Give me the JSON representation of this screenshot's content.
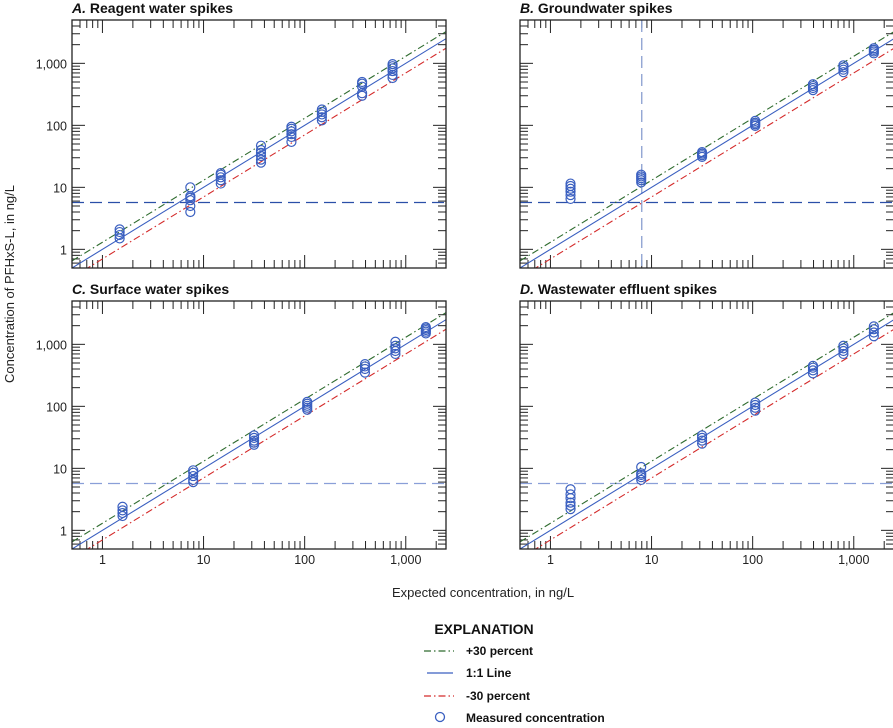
{
  "chart_data": [
    {
      "type": "scatter",
      "panel_letter": "A.",
      "title": "Reagent water spikes",
      "x_scale": "log",
      "y_scale": "log",
      "xlim": [
        0.5,
        2500
      ],
      "ylim": [
        0.5,
        5000
      ],
      "x_tick_labels_shown": false,
      "y_tick_labels_shown": true,
      "horizontal_reference": 5.7,
      "horizontal_reference_color": "#2b4fa8",
      "points": [
        {
          "x": 1.48,
          "y": [
            1.5,
            1.7,
            1.9,
            2.1
          ]
        },
        {
          "x": 7.4,
          "y": [
            4,
            5,
            6.2,
            6.8,
            7.2,
            10
          ]
        },
        {
          "x": 14.8,
          "y": [
            11.5,
            13,
            14.5,
            16,
            17
          ]
        },
        {
          "x": 37,
          "y": [
            25,
            28,
            32,
            36,
            40,
            47
          ]
        },
        {
          "x": 74,
          "y": [
            54,
            65,
            72,
            80,
            88,
            95
          ]
        },
        {
          "x": 148,
          "y": [
            120,
            135,
            150,
            165,
            180
          ]
        },
        {
          "x": 370,
          "y": [
            300,
            330,
            420,
            470,
            500
          ]
        },
        {
          "x": 740,
          "y": [
            580,
            650,
            750,
            830,
            900,
            970
          ]
        }
      ]
    },
    {
      "type": "scatter",
      "panel_letter": "B.",
      "title": "Groundwater spikes",
      "x_scale": "log",
      "y_scale": "log",
      "xlim": [
        0.5,
        2500
      ],
      "ylim": [
        0.5,
        5000
      ],
      "x_tick_labels_shown": false,
      "y_tick_labels_shown": false,
      "horizontal_reference": 5.7,
      "horizontal_reference_color": "#2b4fa8",
      "vertical_reference": 8,
      "vertical_reference_color": "#8a9fd0",
      "points": [
        {
          "x": 1.58,
          "y": [
            6.5,
            7.5,
            8.5,
            9.5,
            10.5,
            11.5
          ]
        },
        {
          "x": 7.9,
          "y": [
            12,
            13,
            14,
            15,
            16
          ]
        },
        {
          "x": 31.6,
          "y": [
            31,
            33,
            35,
            37
          ]
        },
        {
          "x": 106,
          "y": [
            98,
            104,
            110,
            118
          ]
        },
        {
          "x": 395,
          "y": [
            370,
            400,
            430,
            460
          ]
        },
        {
          "x": 790,
          "y": [
            720,
            790,
            860,
            930
          ]
        },
        {
          "x": 1580,
          "y": [
            1450,
            1550,
            1650,
            1750
          ]
        }
      ]
    },
    {
      "type": "scatter",
      "panel_letter": "C.",
      "title": "Surface water spikes",
      "x_scale": "log",
      "y_scale": "log",
      "xlim": [
        0.5,
        2500
      ],
      "ylim": [
        0.5,
        5000
      ],
      "x_tick_labels_shown": true,
      "y_tick_labels_shown": true,
      "horizontal_reference": 5.7,
      "horizontal_reference_color": "#8a9fd8",
      "points": [
        {
          "x": 1.58,
          "y": [
            1.7,
            1.9,
            2.1,
            2.4
          ]
        },
        {
          "x": 7.9,
          "y": [
            6.0,
            6.5,
            7.5,
            8.5,
            9.3
          ]
        },
        {
          "x": 31.6,
          "y": [
            24,
            26,
            28,
            31,
            34
          ]
        },
        {
          "x": 106,
          "y": [
            88,
            95,
            102,
            110,
            118
          ]
        },
        {
          "x": 395,
          "y": [
            350,
            400,
            440,
            480
          ]
        },
        {
          "x": 790,
          "y": [
            700,
            780,
            860,
            950,
            1100
          ]
        },
        {
          "x": 1580,
          "y": [
            1500,
            1600,
            1700,
            1800,
            1900
          ]
        }
      ]
    },
    {
      "type": "scatter",
      "panel_letter": "D.",
      "title": "Wastewater effluent spikes",
      "x_scale": "log",
      "y_scale": "log",
      "xlim": [
        0.5,
        2500
      ],
      "ylim": [
        0.5,
        5000
      ],
      "x_tick_labels_shown": true,
      "y_tick_labels_shown": false,
      "horizontal_reference": 5.7,
      "horizontal_reference_color": "#8a9fd8",
      "points": [
        {
          "x": 1.58,
          "y": [
            2.2,
            2.5,
            2.8,
            3.3,
            3.8,
            4.6
          ]
        },
        {
          "x": 7.9,
          "y": [
            6.5,
            7.2,
            7.8,
            8.3,
            10.5
          ]
        },
        {
          "x": 31.6,
          "y": [
            25,
            28,
            31,
            34
          ]
        },
        {
          "x": 106,
          "y": [
            85,
            95,
            105,
            115
          ]
        },
        {
          "x": 395,
          "y": [
            340,
            380,
            420,
            450
          ]
        },
        {
          "x": 790,
          "y": [
            700,
            780,
            860,
            950
          ]
        },
        {
          "x": 1580,
          "y": [
            1350,
            1550,
            1750,
            1950
          ]
        }
      ]
    }
  ],
  "x_ticks": [
    {
      "value": 1,
      "label": "1"
    },
    {
      "value": 10,
      "label": "10"
    },
    {
      "value": 100,
      "label": "100"
    },
    {
      "value": 1000,
      "label": "1,000"
    }
  ],
  "y_ticks": [
    {
      "value": 1,
      "label": "1"
    },
    {
      "value": 10,
      "label": "10"
    },
    {
      "value": 100,
      "label": "100"
    },
    {
      "value": 1000,
      "label": "1,000"
    }
  ],
  "xlabel": "Expected concentration, in ng/L",
  "ylabel": "Concentration of PFHxS-L, in ng/L",
  "reference_lines": [
    {
      "name": "+30 percent",
      "factor": 1.3,
      "color": "#2e6b2e",
      "style": "dash-dot"
    },
    {
      "name": "1:1 Line",
      "factor": 1.0,
      "color": "#3a5fc0",
      "style": "solid"
    },
    {
      "name": "-30 percent",
      "factor": 0.7,
      "color": "#d42a2a",
      "style": "dash-dot"
    }
  ],
  "marker_color": "#3a5fc0",
  "legend": {
    "title": "EXPLANATION",
    "items": [
      "+30 percent",
      "1:1 Line",
      "-30 percent",
      "Measured concentration"
    ]
  }
}
